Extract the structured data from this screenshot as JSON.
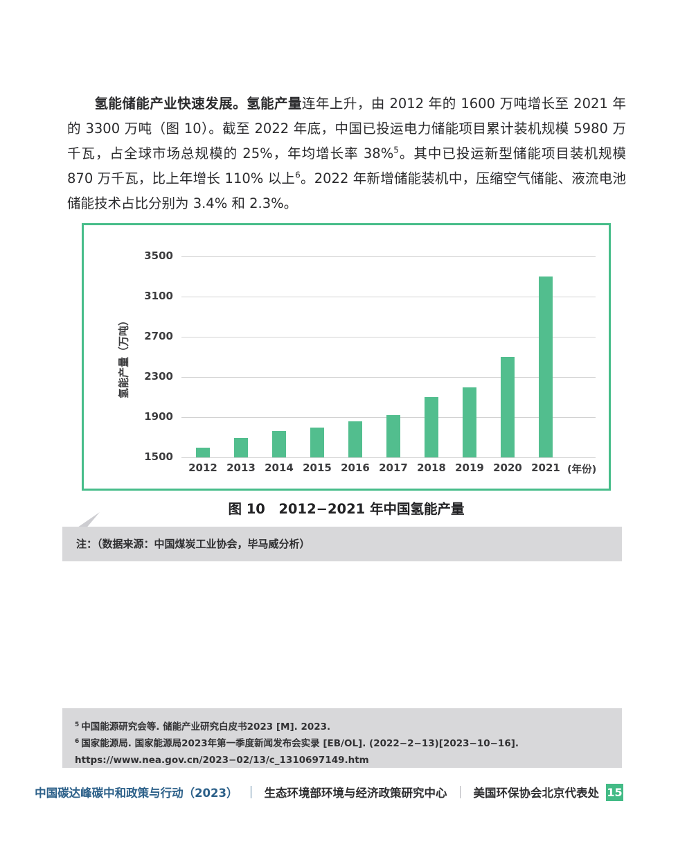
{
  "paragraph": {
    "lead_bold": "氢能储能产业快速发展。",
    "subject_bold": "氢能产量",
    "part1": "连年上升，由 2012 年的 1600 万吨增长至 2021 年的 3300 万吨（图 10）。截至 2022 年底，中国已投运电力储能项目累计装机规模 5980 万千瓦，占全球市场总规模的 25%，年均增长率 38%",
    "sup1": "5",
    "part2": "。其中已投运新型储能项目装机规模 870 万千瓦，比上年增长 110% 以上",
    "sup2": "6",
    "part3": "。2022 年新增储能装机中，压缩空气储能、液流电池储能技术占比分别为 3.4% 和 2.3%。"
  },
  "chart_data": {
    "type": "bar",
    "title": "图 10　2012−2021 年中国氢能产量",
    "categories": [
      "2012",
      "2013",
      "2014",
      "2015",
      "2016",
      "2017",
      "2018",
      "2019",
      "2020",
      "2021"
    ],
    "values": [
      1600,
      1690,
      1760,
      1800,
      1860,
      1920,
      2100,
      2200,
      2500,
      3300
    ],
    "ylabel": "氢能产量（万吨）",
    "xlabel_suffix": "(年份)",
    "yticks": [
      1500,
      1900,
      2300,
      2700,
      3100,
      3500
    ],
    "ylim": [
      1500,
      3500
    ],
    "grid": true,
    "legend_position": "none",
    "bar_color": "#52be8e",
    "frame_color": "#47bd8a"
  },
  "note": {
    "text": "注：（数据来源：中国煤炭工业协会，毕马威分析）"
  },
  "footnotes": [
    {
      "marker": "5",
      "text": "中国能源研究会等. 储能产业研究白皮书2023 [M]. 2023."
    },
    {
      "marker": "6",
      "text": "国家能源局. 国家能源局2023年第一季度新闻发布会实录 [EB/OL]. (2022−2−13)[2023−10−16]. https://www.nea.gov.cn/2023−02/13/c_1310697149.htm"
    }
  ],
  "footer": {
    "title": "中国碳达峰碳中和政策与行动（2023）",
    "separator": "｜",
    "org1": "生态环境部环境与经济政策研究中心",
    "org2": "美国环保协会北京代表处",
    "page_number": "15",
    "title_color": "#2c6089",
    "badge_color": "#43bb86"
  }
}
